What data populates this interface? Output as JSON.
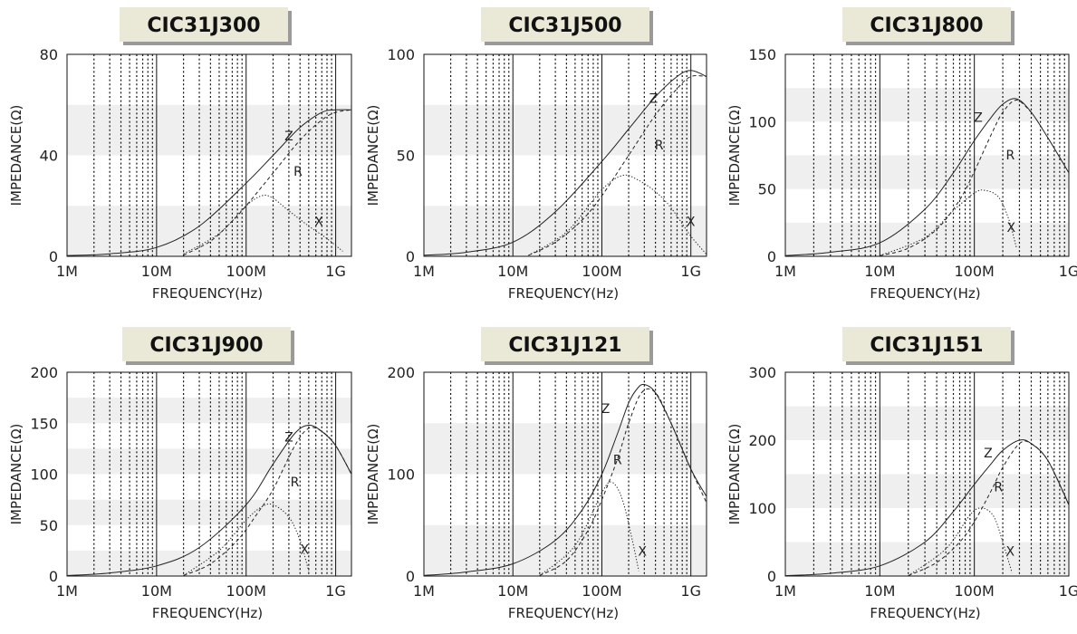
{
  "common": {
    "x_tick_labels": [
      "1M",
      "10M",
      "100M",
      "1G"
    ],
    "x_axis_label": "FREQUENCY(Hz)",
    "y_axis_label": "IMPEDANCE(Ω)",
    "curve_labels": {
      "z": "Z",
      "r": "R",
      "x": "X"
    },
    "colors": {
      "title_bg": "#eae8d6",
      "title_text": "#111111",
      "title_shadow": "#9a9a9a",
      "stripe": "#efefef",
      "curve": "#222222",
      "grid": "#111111"
    }
  },
  "chart_data": [
    {
      "type": "line",
      "title": "CIC31J300",
      "xlabel": "FREQUENCY(Hz)",
      "ylabel": "IMPEDANCE(Ω)",
      "x_scale": "log",
      "xlim": [
        1000000,
        1500000000
      ],
      "ylim": [
        0,
        80
      ],
      "y_ticks": [
        0,
        40,
        80
      ],
      "y_tick_labels": [
        "0",
        "40",
        "80"
      ],
      "grid": true,
      "series": [
        {
          "name": "Z",
          "style": "solid",
          "x": [
            1000000,
            3000000,
            10000000,
            30000000,
            100000000,
            200000000,
            400000000,
            700000000,
            1000000000,
            1500000000
          ],
          "y": [
            0.3,
            1,
            3.5,
            12,
            29,
            40,
            51,
            57,
            58,
            58
          ]
        },
        {
          "name": "R",
          "style": "dashed",
          "x": [
            20000000,
            40000000,
            70000000,
            100000000,
            200000000,
            400000000,
            700000000,
            1000000000,
            1500000000
          ],
          "y": [
            0.5,
            6,
            14,
            20,
            33,
            46,
            54,
            57,
            58
          ]
        },
        {
          "name": "X",
          "style": "dotted",
          "x": [
            20000000,
            50000000,
            100000000,
            150000000,
            200000000,
            300000000,
            500000000,
            800000000,
            1200000000
          ],
          "y": [
            1,
            9,
            20,
            24,
            23,
            18,
            12,
            7,
            2
          ]
        }
      ],
      "annotations": [
        {
          "text": "Z",
          "x": 300000000,
          "y": 46
        },
        {
          "text": "R",
          "x": 380000000,
          "y": 32
        },
        {
          "text": "X",
          "x": 650000000,
          "y": 12
        }
      ]
    },
    {
      "type": "line",
      "title": "CIC31J500",
      "xlabel": "FREQUENCY(Hz)",
      "ylabel": "IMPEDANCE(Ω)",
      "x_scale": "log",
      "xlim": [
        1000000,
        1500000000
      ],
      "ylim": [
        0,
        100
      ],
      "y_ticks": [
        0,
        50,
        100
      ],
      "y_tick_labels": [
        "0",
        "50",
        "100"
      ],
      "grid": true,
      "series": [
        {
          "name": "Z",
          "style": "solid",
          "x": [
            1000000,
            3000000,
            10000000,
            30000000,
            100000000,
            200000000,
            400000000,
            700000000,
            1000000000,
            1500000000
          ],
          "y": [
            0.5,
            2,
            7,
            22,
            47,
            63,
            79,
            89,
            92,
            89
          ]
        },
        {
          "name": "R",
          "style": "dashed",
          "x": [
            15000000,
            30000000,
            60000000,
            100000000,
            200000000,
            400000000,
            700000000,
            1000000000,
            1500000000
          ],
          "y": [
            0.5,
            7,
            18,
            30,
            50,
            70,
            83,
            89,
            89
          ]
        },
        {
          "name": "X",
          "style": "dotted",
          "x": [
            15000000,
            40000000,
            100000000,
            170000000,
            250000000,
            400000000,
            600000000,
            1000000000,
            1500000000
          ],
          "y": [
            0.5,
            12,
            33,
            40,
            38,
            32,
            24,
            10,
            1
          ]
        }
      ],
      "annotations": [
        {
          "text": "Z",
          "x": 380000000,
          "y": 76
        },
        {
          "text": "R",
          "x": 440000000,
          "y": 53
        },
        {
          "text": "X",
          "x": 1000000000,
          "y": 15
        }
      ]
    },
    {
      "type": "line",
      "title": "CIC31J800",
      "xlabel": "FREQUENCY(Hz)",
      "ylabel": "IMPEDANCE(Ω)",
      "x_scale": "log",
      "xlim": [
        1000000,
        1000000000
      ],
      "ylim": [
        0,
        150
      ],
      "y_ticks": [
        0,
        50,
        100,
        150
      ],
      "y_tick_labels": [
        "0",
        "50",
        "100",
        "150"
      ],
      "grid": true,
      "series": [
        {
          "name": "Z",
          "style": "solid",
          "x": [
            1000000,
            3000000,
            10000000,
            30000000,
            60000000,
            100000000,
            150000000,
            200000000,
            280000000,
            400000000,
            600000000,
            1000000000
          ],
          "y": [
            0.5,
            3,
            10,
            35,
            62,
            86,
            103,
            113,
            117,
            107,
            88,
            62
          ]
        },
        {
          "name": "R",
          "style": "dashed",
          "x": [
            10000000,
            20000000,
            40000000,
            70000000,
            100000000,
            150000000,
            200000000,
            280000000,
            400000000
          ],
          "y": [
            0.5,
            6,
            20,
            42,
            63,
            90,
            107,
            116,
            107
          ]
        },
        {
          "name": "X",
          "style": "dotted",
          "x": [
            10000000,
            30000000,
            60000000,
            100000000,
            130000000,
            180000000,
            230000000,
            280000000
          ],
          "y": [
            0.5,
            14,
            34,
            47,
            49,
            44,
            28,
            6
          ]
        }
      ],
      "annotations": [
        {
          "text": "Z",
          "x": 110000000,
          "y": 100
        },
        {
          "text": "R",
          "x": 240000000,
          "y": 72
        },
        {
          "text": "X",
          "x": 245000000,
          "y": 18
        }
      ]
    },
    {
      "type": "line",
      "title": "CIC31J900",
      "xlabel": "FREQUENCY(Hz)",
      "ylabel": "IMPEDANCE(Ω)",
      "x_scale": "log",
      "xlim": [
        1000000,
        1500000000
      ],
      "ylim": [
        0,
        200
      ],
      "y_ticks": [
        0,
        50,
        100,
        150,
        200
      ],
      "y_tick_labels": [
        "0",
        "50",
        "100",
        "150",
        "200"
      ],
      "grid": true,
      "series": [
        {
          "name": "Z",
          "style": "solid",
          "x": [
            1000000,
            3000000,
            10000000,
            30000000,
            100000000,
            200000000,
            350000000,
            500000000,
            700000000,
            1000000000,
            1500000000
          ],
          "y": [
            0.5,
            3,
            10,
            28,
            70,
            110,
            140,
            148,
            142,
            128,
            100
          ]
        },
        {
          "name": "R",
          "style": "dashed",
          "x": [
            20000000,
            40000000,
            80000000,
            130000000,
            200000000,
            350000000,
            500000000,
            700000000,
            1000000000,
            1500000000
          ],
          "y": [
            0.5,
            12,
            35,
            60,
            85,
            128,
            145,
            142,
            128,
            100
          ]
        },
        {
          "name": "X",
          "style": "dotted",
          "x": [
            20000000,
            50000000,
            100000000,
            150000000,
            200000000,
            300000000,
            400000000,
            500000000
          ],
          "y": [
            0.5,
            25,
            55,
            68,
            70,
            58,
            35,
            5
          ]
        }
      ],
      "annotations": [
        {
          "text": "Z",
          "x": 300000000,
          "y": 132
        },
        {
          "text": "R",
          "x": 350000000,
          "y": 88
        },
        {
          "text": "X",
          "x": 450000000,
          "y": 22
        }
      ]
    },
    {
      "type": "line",
      "title": "CIC31J121",
      "xlabel": "FREQUENCY(Hz)",
      "ylabel": "IMPEDANCE(Ω)",
      "x_scale": "log",
      "xlim": [
        1000000,
        1500000000
      ],
      "ylim": [
        0,
        200
      ],
      "y_ticks": [
        0,
        100,
        200
      ],
      "y_tick_labels": [
        "0",
        "100",
        "200"
      ],
      "grid": true,
      "series": [
        {
          "name": "Z",
          "style": "solid",
          "x": [
            1000000,
            3000000,
            10000000,
            30000000,
            60000000,
            100000000,
            150000000,
            200000000,
            250000000,
            300000000,
            400000000,
            600000000,
            1000000000,
            1500000000
          ],
          "y": [
            0.5,
            4,
            12,
            35,
            65,
            100,
            140,
            170,
            184,
            188,
            180,
            150,
            105,
            78
          ]
        },
        {
          "name": "R",
          "style": "dashed",
          "x": [
            20000000,
            40000000,
            70000000,
            100000000,
            150000000,
            200000000,
            280000000,
            400000000,
            600000000,
            1000000000,
            1500000000
          ],
          "y": [
            0.5,
            15,
            45,
            75,
            115,
            150,
            180,
            180,
            150,
            105,
            72
          ]
        },
        {
          "name": "X",
          "style": "dotted",
          "x": [
            20000000,
            50000000,
            100000000,
            130000000,
            170000000,
            220000000,
            260000000
          ],
          "y": [
            0.5,
            30,
            82,
            92,
            75,
            35,
            5
          ]
        }
      ],
      "annotations": [
        {
          "text": "Z",
          "x": 110000000,
          "y": 160
        },
        {
          "text": "R",
          "x": 150000000,
          "y": 110
        },
        {
          "text": "X",
          "x": 285000000,
          "y": 20
        }
      ]
    },
    {
      "type": "line",
      "title": "CIC31J151",
      "xlabel": "FREQUENCY(Hz)",
      "ylabel": "IMPEDANCE(Ω)",
      "x_scale": "log",
      "xlim": [
        1000000,
        1000000000
      ],
      "ylim": [
        0,
        300
      ],
      "y_ticks": [
        0,
        100,
        200,
        300
      ],
      "y_tick_labels": [
        "0",
        "100",
        "200",
        "300"
      ],
      "grid": true,
      "series": [
        {
          "name": "Z",
          "style": "solid",
          "x": [
            1000000,
            3000000,
            10000000,
            30000000,
            60000000,
            100000000,
            150000000,
            200000000,
            300000000,
            400000000,
            600000000,
            1000000000
          ],
          "y": [
            0.5,
            4,
            15,
            50,
            95,
            135,
            165,
            185,
            200,
            195,
            170,
            105
          ]
        },
        {
          "name": "R",
          "style": "dashed",
          "x": [
            20000000,
            40000000,
            70000000,
            100000000,
            150000000,
            200000000,
            300000000,
            400000000,
            600000000,
            1000000000
          ],
          "y": [
            0.5,
            20,
            50,
            80,
            125,
            160,
            195,
            195,
            170,
            105
          ]
        },
        {
          "name": "X",
          "style": "dotted",
          "x": [
            20000000,
            50000000,
            90000000,
            120000000,
            160000000,
            200000000,
            250000000
          ],
          "y": [
            0.5,
            40,
            90,
            100,
            88,
            50,
            5
          ]
        }
      ],
      "annotations": [
        {
          "text": "Z",
          "x": 140000000,
          "y": 175
        },
        {
          "text": "R",
          "x": 180000000,
          "y": 125
        },
        {
          "text": "X",
          "x": 240000000,
          "y": 30
        }
      ]
    }
  ]
}
